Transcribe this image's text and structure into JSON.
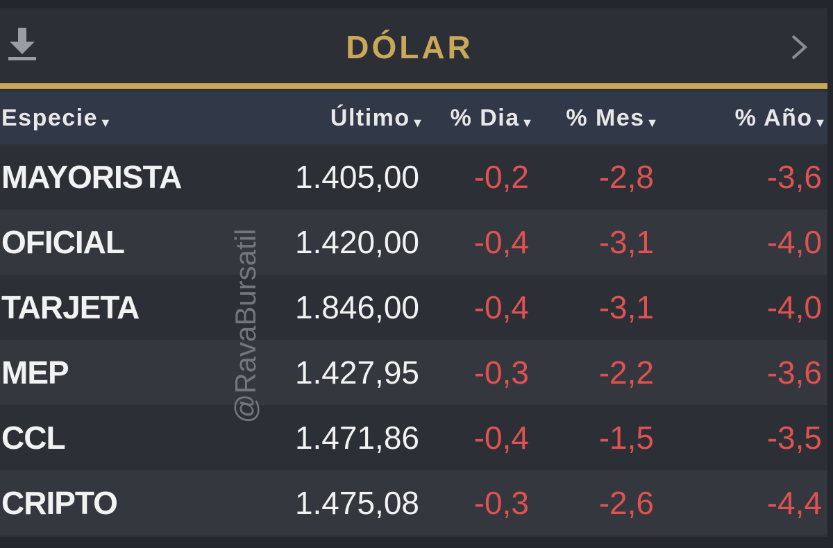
{
  "header": {
    "title": "DÓLAR",
    "download_icon": "download-icon",
    "next_icon": "chevron-right-icon"
  },
  "columns": [
    {
      "label": "Especie"
    },
    {
      "label": "Último"
    },
    {
      "label": "% Dia"
    },
    {
      "label": "% Mes"
    },
    {
      "label": "% Año"
    }
  ],
  "rows": [
    {
      "name": "MAYORISTA",
      "last": "1.405,00",
      "day": "-0,2",
      "month": "-2,8",
      "year": "-3,6"
    },
    {
      "name": "OFICIAL",
      "last": "1.420,00",
      "day": "-0,4",
      "month": "-3,1",
      "year": "-4,0"
    },
    {
      "name": "TARJETA",
      "last": "1.846,00",
      "day": "-0,4",
      "month": "-3,1",
      "year": "-4,0"
    },
    {
      "name": "MEP",
      "last": "1.427,95",
      "day": "-0,3",
      "month": "-2,2",
      "year": "-3,6"
    },
    {
      "name": "CCL",
      "last": "1.471,86",
      "day": "-0,4",
      "month": "-1,5",
      "year": "-3,5"
    },
    {
      "name": "CRIPTO",
      "last": "1.475,08",
      "day": "-0,3",
      "month": "-2,6",
      "year": "-4,4"
    }
  ],
  "watermark": "@RavaBursatil",
  "colors": {
    "accent_gold": "#c9a85a",
    "negative_red": "#e05252",
    "background": "#2c2f36",
    "header_row": "#313949"
  }
}
